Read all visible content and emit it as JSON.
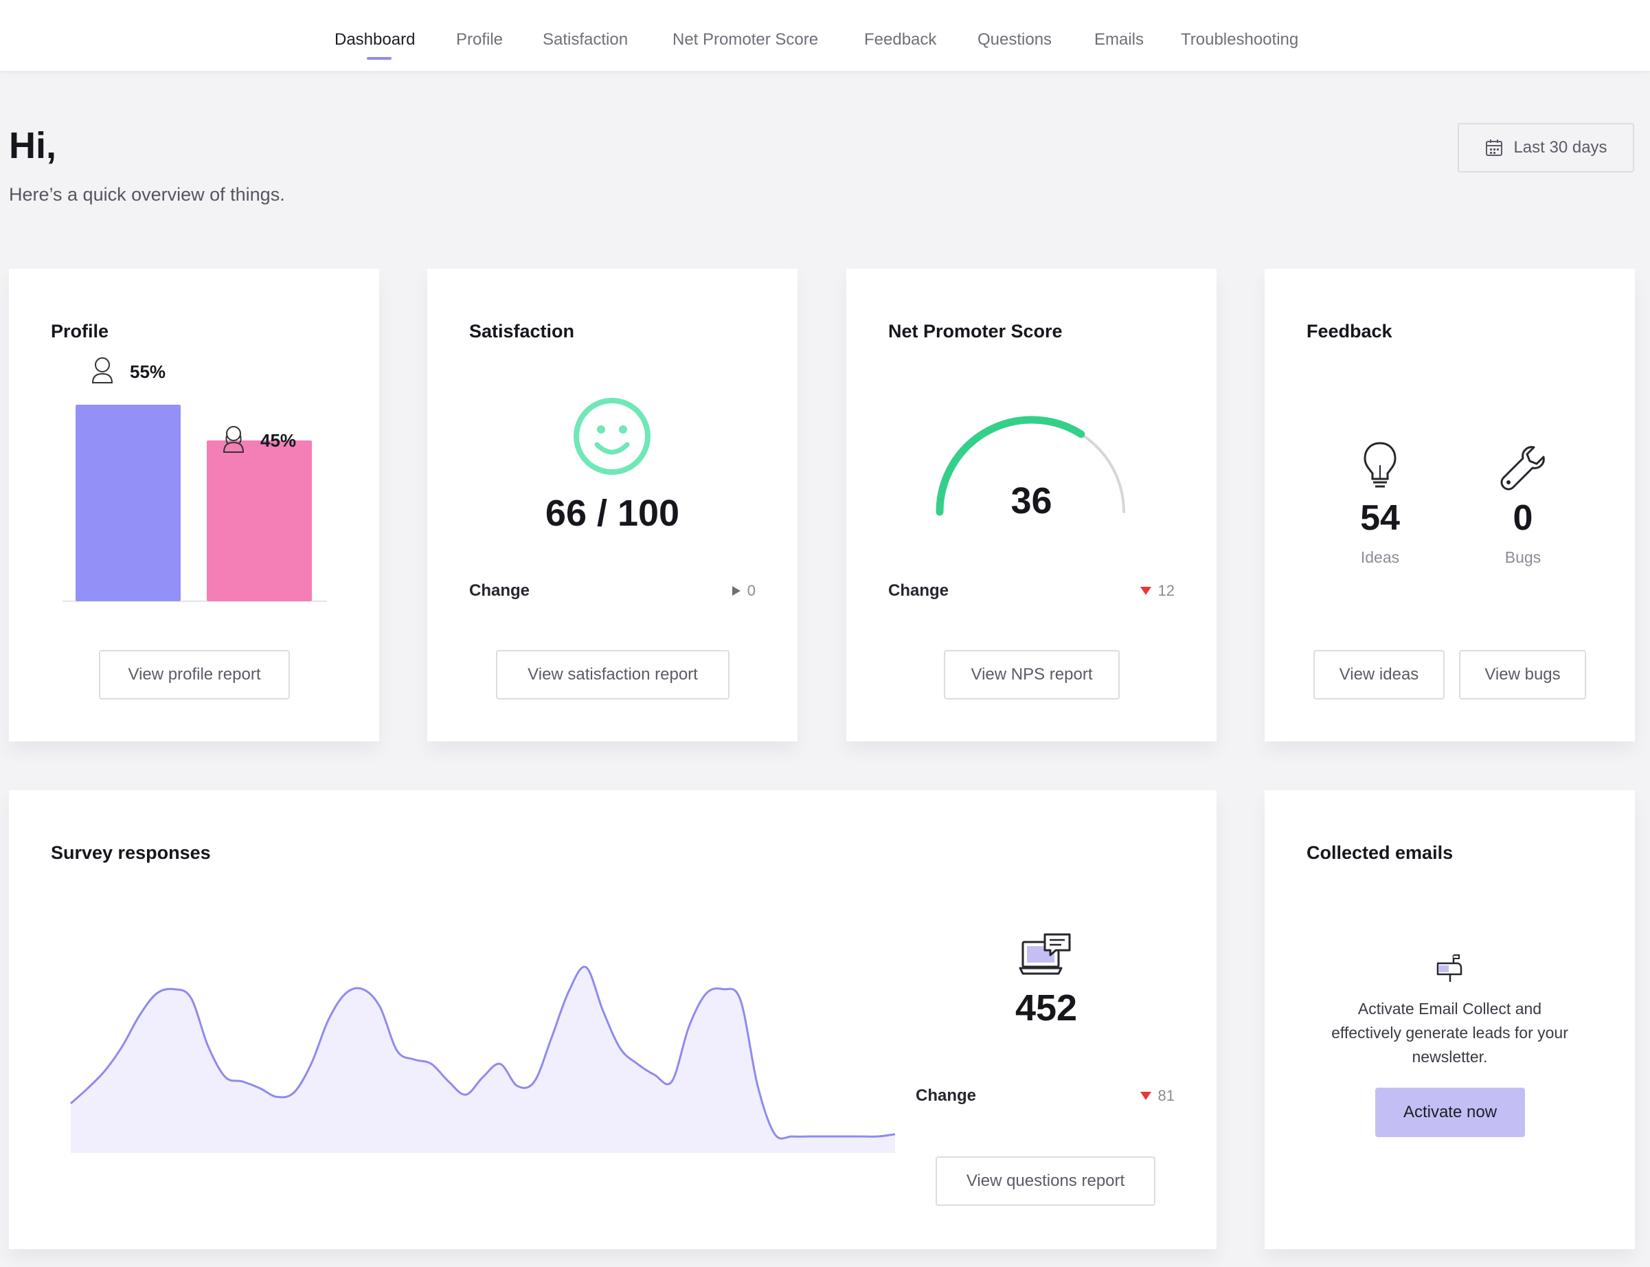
{
  "nav": {
    "tabs": [
      {
        "label": "Dashboard"
      },
      {
        "label": "Profile"
      },
      {
        "label": "Satisfaction"
      },
      {
        "label": "Net Promoter Score"
      },
      {
        "label": "Feedback"
      },
      {
        "label": "Questions"
      },
      {
        "label": "Emails"
      },
      {
        "label": "Troubleshooting"
      }
    ],
    "active": "Dashboard"
  },
  "header": {
    "greeting": "Hi,",
    "subtitle": "Here’s a quick overview of things.",
    "date_range": "Last 30 days",
    "date_icon": "calendar-icon"
  },
  "profile": {
    "title": "Profile",
    "male_pct_label": "55%",
    "female_pct_label": "45%",
    "male_fraction": 0.55,
    "female_fraction": 0.45,
    "male_color": "#9391f7",
    "female_color": "#f47fb6",
    "button": "View profile report"
  },
  "satisfaction": {
    "title": "Satisfaction",
    "score": "66 / 100",
    "change_label": "Change",
    "change_value": "0",
    "icon": "smiley-icon",
    "icon_color": "#6ee8b6",
    "button": "View satisfaction report"
  },
  "nps": {
    "title": "Net Promoter Score",
    "score": "36",
    "gauge_fraction": 0.68,
    "gauge_color": "#34d08a",
    "change_label": "Change",
    "change_value": "12",
    "button": "View NPS report"
  },
  "feedback": {
    "title": "Feedback",
    "ideas_count": "54",
    "ideas_label": "Ideas",
    "bugs_count": "0",
    "bugs_label": "Bugs",
    "ideas_icon": "lightbulb-icon",
    "bugs_icon": "wrench-icon",
    "ideas_button": "View ideas",
    "bugs_button": "View bugs"
  },
  "survey": {
    "title": "Survey responses",
    "total": "452",
    "change_label": "Change",
    "change_value": "81",
    "icon": "laptop-chat-icon",
    "button": "View questions report",
    "line_color": "#8f8af0",
    "fill_color": "#f1effd"
  },
  "emails": {
    "title": "Collected emails",
    "icon": "mailbox-icon",
    "description_lines": [
      "Activate Email Collect and",
      "effectively generate leads for your",
      "newsletter."
    ],
    "button": "Activate now"
  },
  "chart_data": {
    "type": "area",
    "title": "Survey responses",
    "xlabel": "",
    "ylabel": "",
    "x_ticks": [],
    "y_ticks": [],
    "series": [
      {
        "values": [
          0.2,
          0.27,
          0.35,
          0.46,
          0.6,
          0.7,
          0.72,
          0.68,
          0.46,
          0.32,
          0.3,
          0.27,
          0.23,
          0.25,
          0.38,
          0.58,
          0.7,
          0.72,
          0.64,
          0.44,
          0.4,
          0.38,
          0.3,
          0.24,
          0.32,
          0.38,
          0.28,
          0.3,
          0.5,
          0.71,
          0.82,
          0.62,
          0.45,
          0.38,
          0.33,
          0.3,
          0.55,
          0.7,
          0.72,
          0.67,
          0.28,
          0.06,
          0.05,
          0.05,
          0.05,
          0.05,
          0.05,
          0.05,
          0.06
        ]
      }
    ]
  }
}
